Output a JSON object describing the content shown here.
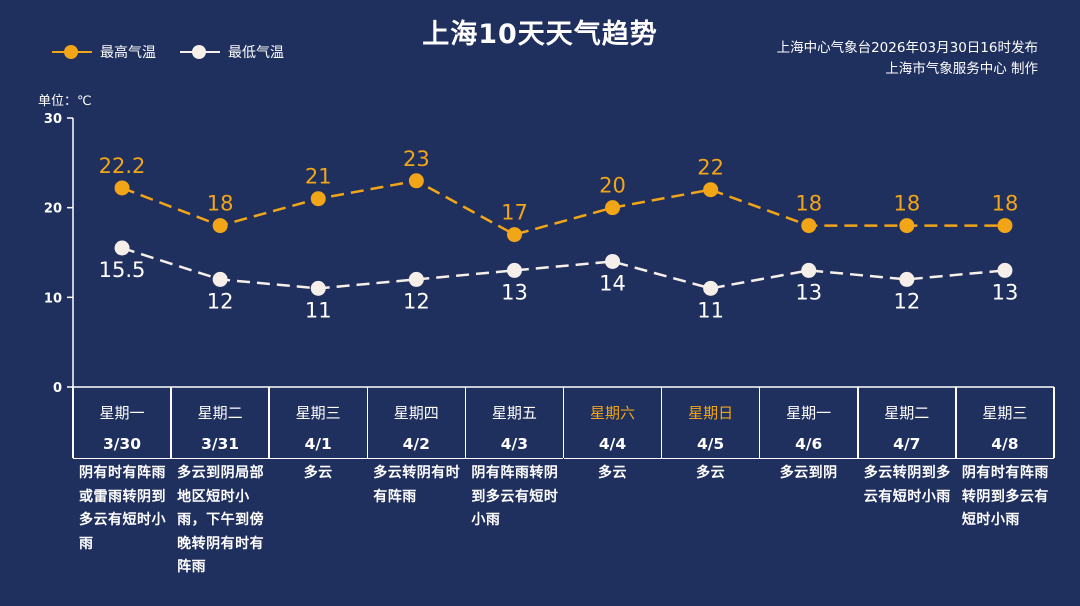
{
  "title": "上海10天天气趋势",
  "source_lines": [
    "上海中心气象台2026年03月30日16时发布",
    "上海市气象服务中心  制作"
  ],
  "legend": [
    {
      "label": "最高气温",
      "color": "#f2a517"
    },
    {
      "label": "最低气温",
      "color": "#f6efe9"
    }
  ],
  "unit_label": "单位：℃",
  "colors": {
    "background": "#1f2f5e",
    "high": "#f2a517",
    "low": "#f6efe9",
    "weekend": "#f2a517",
    "axis": "#ffffff"
  },
  "chart_data": {
    "type": "line",
    "title": "上海10天天气趋势",
    "ylabel": "单位：℃",
    "ylim": [
      0,
      30
    ],
    "yticks": [
      0,
      10,
      20,
      30
    ],
    "grid": false,
    "legend_position": "top-left",
    "categories": [
      "3/30",
      "3/31",
      "4/1",
      "4/2",
      "4/3",
      "4/4",
      "4/5",
      "4/6",
      "4/7",
      "4/8"
    ],
    "weekdays": [
      "星期一",
      "星期二",
      "星期三",
      "星期四",
      "星期五",
      "星期六",
      "星期日",
      "星期一",
      "星期二",
      "星期三"
    ],
    "weekend_flags": [
      false,
      false,
      false,
      false,
      false,
      true,
      true,
      false,
      false,
      false
    ],
    "weather": [
      "阴有时有阵雨或雷雨转阴到多云有短时小雨",
      "多云到阴局部地区短时小雨，下午到傍晚转阴有时有阵雨",
      "多云",
      "多云转阴有时有阵雨",
      "阴有阵雨转阴到多云有短时小雨",
      "多云",
      "多云",
      "多云到阴",
      "多云转阴到多云有短时小雨",
      "阴有时有阵雨转阴到多云有短时小雨"
    ],
    "series": [
      {
        "name": "最高气温",
        "values": [
          22.2,
          18,
          21,
          23,
          17,
          20,
          22,
          18,
          18,
          18
        ],
        "labels": [
          "22.2",
          "18",
          "21",
          "23",
          "17",
          "20",
          "22",
          "18",
          "18",
          "18"
        ]
      },
      {
        "name": "最低气温",
        "values": [
          15.5,
          12,
          11,
          12,
          13,
          14,
          11,
          13,
          12,
          13
        ],
        "labels": [
          "15.5",
          "12",
          "11",
          "12",
          "13",
          "14",
          "11",
          "13",
          "12",
          "13"
        ]
      }
    ]
  }
}
